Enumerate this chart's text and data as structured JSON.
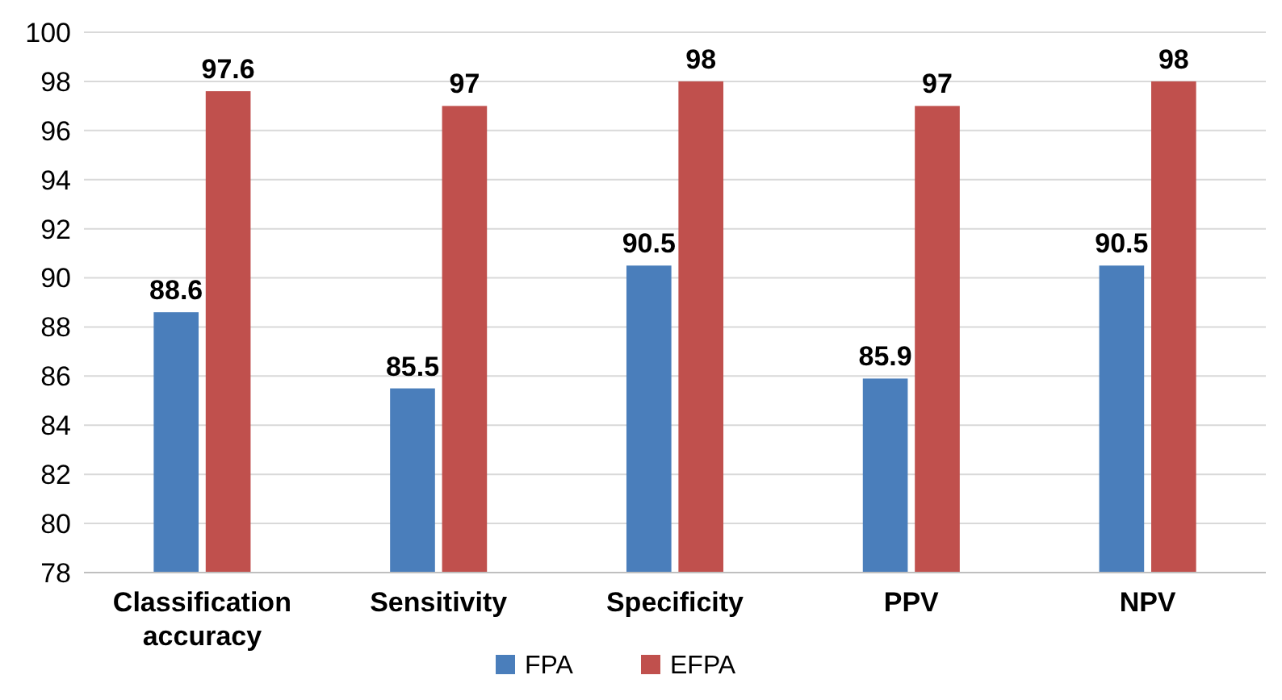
{
  "chart_data": {
    "type": "bar",
    "categories": [
      "Classification accuracy",
      "Sensitivity",
      "Specificity",
      "PPV",
      "NPV"
    ],
    "series": [
      {
        "name": "FPA",
        "color": "#4a7ebb",
        "values": [
          88.6,
          85.5,
          90.5,
          85.9,
          90.5
        ]
      },
      {
        "name": "EFPA",
        "color": "#c0504d",
        "values": [
          97.6,
          97,
          98,
          97,
          98
        ]
      }
    ],
    "ylim": [
      78,
      100
    ],
    "yticks": [
      78,
      80,
      82,
      84,
      86,
      88,
      90,
      92,
      94,
      96,
      98,
      100
    ],
    "grid": "y",
    "legend": "bottom",
    "data_labels": true
  }
}
